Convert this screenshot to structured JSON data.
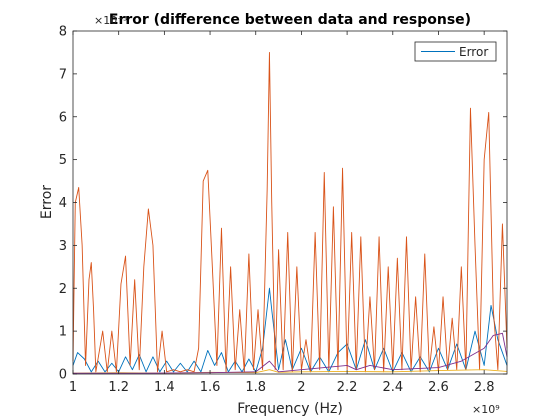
{
  "chart_data": {
    "type": "line",
    "title": "Error (difference between data and response)",
    "xlabel": "Frequency (Hz)",
    "ylabel": "Error",
    "x_exponent_label": "×10⁹",
    "y_exponent_label": "×10⁻³",
    "xlim": [
      1.0,
      2.9
    ],
    "ylim": [
      0,
      8
    ],
    "x_ticks": [
      1,
      1.2,
      1.4,
      1.6,
      1.8,
      2,
      2.2,
      2.4,
      2.6,
      2.8
    ],
    "x_tick_labels": [
      "1",
      "1.2",
      "1.4",
      "1.6",
      "1.8",
      "2",
      "2.2",
      "2.4",
      "2.6",
      "2.8"
    ],
    "y_ticks": [
      0,
      1,
      2,
      3,
      4,
      5,
      6,
      7,
      8
    ],
    "y_tick_labels": [
      "0",
      "1",
      "2",
      "3",
      "4",
      "5",
      "6",
      "7",
      "8"
    ],
    "legend": {
      "position": "top-right",
      "entries": [
        "Error"
      ]
    },
    "grid": false,
    "series": [
      {
        "name": "Error",
        "color": "#0072BD",
        "x": [
          1.0,
          1.02,
          1.05,
          1.08,
          1.11,
          1.14,
          1.17,
          1.2,
          1.23,
          1.26,
          1.29,
          1.32,
          1.35,
          1.38,
          1.41,
          1.44,
          1.47,
          1.5,
          1.53,
          1.56,
          1.59,
          1.62,
          1.65,
          1.68,
          1.71,
          1.74,
          1.77,
          1.8,
          1.83,
          1.86,
          1.87,
          1.9,
          1.93,
          1.96,
          2.0,
          2.04,
          2.08,
          2.12,
          2.16,
          2.2,
          2.24,
          2.28,
          2.32,
          2.36,
          2.4,
          2.44,
          2.48,
          2.52,
          2.56,
          2.6,
          2.64,
          2.68,
          2.72,
          2.76,
          2.8,
          2.83,
          2.86,
          2.9
        ],
        "y": [
          0.2,
          0.5,
          0.35,
          0.05,
          0.3,
          0.05,
          0.25,
          0.05,
          0.4,
          0.1,
          0.45,
          0.05,
          0.4,
          0.05,
          0.3,
          0.05,
          0.25,
          0.05,
          0.3,
          0.05,
          0.55,
          0.2,
          0.5,
          0.05,
          0.3,
          0.05,
          0.35,
          0.05,
          0.6,
          2.0,
          1.5,
          0.1,
          0.8,
          0.1,
          0.6,
          0.05,
          0.4,
          0.05,
          0.5,
          0.7,
          0.1,
          0.8,
          0.1,
          0.6,
          0.05,
          0.5,
          0.05,
          0.4,
          0.05,
          0.6,
          0.1,
          0.7,
          0.1,
          1.0,
          0.2,
          1.6,
          0.8,
          0.2
        ]
      },
      {
        "name": "",
        "color": "#D95319",
        "x": [
          1.0,
          1.01,
          1.025,
          1.04,
          1.055,
          1.07,
          1.08,
          1.09,
          1.1,
          1.13,
          1.15,
          1.17,
          1.19,
          1.21,
          1.23,
          1.25,
          1.27,
          1.29,
          1.31,
          1.33,
          1.35,
          1.37,
          1.39,
          1.41,
          1.44,
          1.47,
          1.5,
          1.53,
          1.55,
          1.57,
          1.59,
          1.61,
          1.63,
          1.65,
          1.67,
          1.69,
          1.71,
          1.73,
          1.75,
          1.77,
          1.79,
          1.81,
          1.83,
          1.85,
          1.86,
          1.87,
          1.885,
          1.9,
          1.92,
          1.94,
          1.96,
          1.98,
          2.0,
          2.02,
          2.04,
          2.06,
          2.08,
          2.1,
          2.12,
          2.14,
          2.16,
          2.18,
          2.2,
          2.22,
          2.24,
          2.26,
          2.28,
          2.3,
          2.32,
          2.34,
          2.36,
          2.38,
          2.4,
          2.42,
          2.44,
          2.46,
          2.48,
          2.5,
          2.52,
          2.54,
          2.56,
          2.58,
          2.6,
          2.62,
          2.64,
          2.66,
          2.68,
          2.7,
          2.72,
          2.74,
          2.76,
          2.78,
          2.8,
          2.82,
          2.84,
          2.86,
          2.88,
          2.9
        ],
        "y": [
          0.3,
          4.0,
          4.35,
          3.0,
          0.2,
          2.2,
          2.6,
          1.5,
          0.05,
          1.0,
          0.05,
          1.0,
          0.05,
          2.1,
          2.75,
          0.2,
          2.2,
          0.1,
          2.5,
          3.85,
          3.0,
          0.05,
          1.0,
          0.05,
          0.1,
          0.05,
          0.1,
          0.05,
          0.6,
          4.5,
          4.75,
          2.5,
          0.2,
          3.4,
          0.05,
          2.5,
          0.1,
          1.5,
          0.05,
          2.8,
          0.1,
          1.5,
          0.1,
          4.3,
          7.5,
          4.0,
          0.1,
          2.9,
          0.1,
          3.3,
          0.05,
          2.5,
          0.1,
          0.8,
          0.05,
          3.3,
          0.1,
          4.7,
          0.1,
          3.9,
          0.1,
          4.8,
          0.1,
          3.3,
          0.1,
          3.2,
          0.05,
          1.8,
          0.1,
          3.2,
          0.05,
          2.5,
          0.1,
          2.7,
          0.1,
          3.2,
          0.1,
          1.8,
          0.05,
          2.8,
          0.1,
          1.1,
          0.05,
          1.8,
          0.1,
          1.3,
          0.1,
          2.5,
          0.1,
          6.2,
          3.0,
          0.1,
          5.0,
          6.1,
          1.5,
          0.1,
          3.5,
          0.6
        ]
      },
      {
        "name": "",
        "color": "#EDB120",
        "x": [
          1.0,
          1.2,
          1.4,
          1.6,
          1.8,
          1.86,
          1.9,
          2.0,
          2.2,
          2.4,
          2.6,
          2.8,
          2.9
        ],
        "y": [
          0.02,
          0.03,
          0.02,
          0.04,
          0.03,
          0.1,
          0.04,
          0.05,
          0.06,
          0.05,
          0.08,
          0.1,
          0.06
        ]
      },
      {
        "name": "",
        "color": "#7E2F8E",
        "x": [
          1.0,
          1.3,
          1.6,
          1.8,
          1.86,
          1.9,
          2.0,
          2.2,
          2.24,
          2.3,
          2.4,
          2.6,
          2.7,
          2.8,
          2.84,
          2.88,
          2.9
        ],
        "y": [
          0.02,
          0.02,
          0.03,
          0.05,
          0.3,
          0.05,
          0.1,
          0.2,
          0.1,
          0.2,
          0.1,
          0.15,
          0.3,
          0.6,
          0.9,
          0.95,
          0.4
        ]
      }
    ]
  }
}
